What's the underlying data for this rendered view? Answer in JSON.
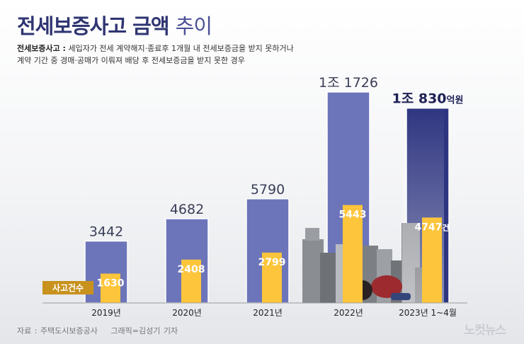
{
  "title_bold": "전세보증사고 금액",
  "title_light": "추이",
  "definition": {
    "term": "전세보증사고 :",
    "line1": "세입자가 전세 계약해지·종료후 1개월 내 전세보증금을 받지 못하거나",
    "line2": "계약 기간 중 경매·공매가 이뤄져 배당 후 전세보증금을 받지 못한 경우"
  },
  "source": "자료 : 주택도시보증공사",
  "credit": "그래픽=김성기 기자",
  "logo": "노컷뉴스",
  "colors": {
    "amount_bar": "#6c75b9",
    "amount_bar_highlight": "#2e3580",
    "count_bar": "#fdc53b",
    "count_label_bg": "#c8921d",
    "title": "#2f3572"
  },
  "chart_data": {
    "type": "bar",
    "categories": [
      "2019년",
      "2020년",
      "2021년",
      "2022년",
      "2023년 1~4월"
    ],
    "series": [
      {
        "values": [
          3442,
          4682,
          5790,
          11726,
          10830
        ],
        "labels": [
          "3442",
          "4682",
          "5790",
          "1조 1726",
          "1조 830억원"
        ]
      },
      {
        "name": "사고건수",
        "values": [
          1630,
          2408,
          2799,
          5443,
          4747
        ],
        "labels": [
          "1630",
          "2408",
          "2799",
          "5443",
          "4747건"
        ]
      }
    ],
    "ylim": [
      0,
      12000
    ]
  }
}
